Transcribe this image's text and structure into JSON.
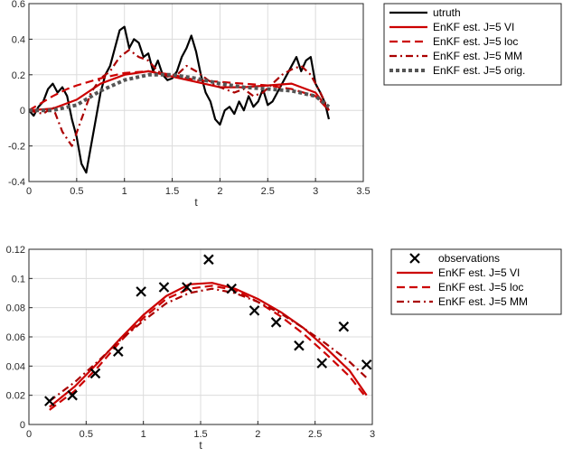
{
  "chart_data": [
    {
      "type": "line",
      "xlabel": "t",
      "ylabel": "",
      "xlim": [
        0,
        3.5
      ],
      "ylim": [
        -0.4,
        0.6
      ],
      "xticks": [
        "0",
        "0.5",
        "1",
        "1.5",
        "2",
        "2.5",
        "3",
        "3.5"
      ],
      "yticks": [
        "-0.4",
        "-0.2",
        "0",
        "0.2",
        "0.4",
        "0.6"
      ],
      "grid": true,
      "legend_position": "outside-right",
      "series": [
        {
          "name": "utruth",
          "color": "#000000",
          "style": "solid",
          "x": [
            0.0,
            0.05,
            0.1,
            0.15,
            0.2,
            0.25,
            0.3,
            0.35,
            0.4,
            0.45,
            0.5,
            0.55,
            0.6,
            0.65,
            0.7,
            0.75,
            0.8,
            0.85,
            0.9,
            0.95,
            1.0,
            1.05,
            1.1,
            1.15,
            1.2,
            1.25,
            1.3,
            1.35,
            1.4,
            1.45,
            1.5,
            1.55,
            1.6,
            1.65,
            1.7,
            1.75,
            1.8,
            1.85,
            1.9,
            1.95,
            2.0,
            2.05,
            2.1,
            2.15,
            2.2,
            2.25,
            2.3,
            2.35,
            2.4,
            2.45,
            2.5,
            2.55,
            2.6,
            2.65,
            2.7,
            2.75,
            2.8,
            2.85,
            2.9,
            2.95,
            3.0,
            3.05,
            3.1,
            3.14
          ],
          "values": [
            0.0,
            -0.03,
            0.02,
            0.05,
            0.12,
            0.15,
            0.1,
            0.13,
            0.08,
            -0.05,
            -0.15,
            -0.3,
            -0.35,
            -0.2,
            -0.05,
            0.1,
            0.2,
            0.25,
            0.35,
            0.45,
            0.47,
            0.35,
            0.4,
            0.38,
            0.3,
            0.32,
            0.22,
            0.28,
            0.2,
            0.17,
            0.18,
            0.22,
            0.3,
            0.35,
            0.42,
            0.33,
            0.2,
            0.1,
            0.05,
            -0.05,
            -0.08,
            0.0,
            0.02,
            -0.02,
            0.05,
            0.0,
            0.08,
            0.02,
            0.05,
            0.12,
            0.03,
            0.05,
            0.1,
            0.15,
            0.2,
            0.25,
            0.3,
            0.22,
            0.28,
            0.3,
            0.15,
            0.1,
            0.04,
            -0.05
          ]
        },
        {
          "name": "EnKF est. J=5 VI",
          "color": "#cc0000",
          "style": "solid",
          "x": [
            0.0,
            0.25,
            0.5,
            0.75,
            1.0,
            1.25,
            1.5,
            1.75,
            2.0,
            2.25,
            2.5,
            2.75,
            3.0,
            3.14
          ],
          "values": [
            0.0,
            0.01,
            0.06,
            0.15,
            0.2,
            0.22,
            0.19,
            0.16,
            0.13,
            0.13,
            0.14,
            0.15,
            0.1,
            0.0
          ]
        },
        {
          "name": "EnKF est. J=5 loc",
          "color": "#cc0000",
          "style": "dashed",
          "x": [
            0.0,
            0.25,
            0.4,
            0.5,
            0.75,
            1.0,
            1.25,
            1.5,
            1.75,
            2.0,
            2.25,
            2.5,
            2.75,
            3.0,
            3.14
          ],
          "values": [
            0.0,
            0.08,
            0.12,
            0.14,
            0.18,
            0.21,
            0.22,
            0.2,
            0.17,
            0.16,
            0.15,
            0.14,
            0.12,
            0.08,
            0.0
          ]
        },
        {
          "name": "EnKF est. J=5 MM",
          "color": "#aa0000",
          "style": "dashdot",
          "x": [
            0.0,
            0.15,
            0.25,
            0.35,
            0.45,
            0.55,
            0.65,
            0.75,
            0.85,
            0.95,
            1.05,
            1.15,
            1.25,
            1.35,
            1.45,
            1.55,
            1.65,
            1.75,
            1.85,
            1.95,
            2.05,
            2.15,
            2.25,
            2.35,
            2.45,
            2.55,
            2.65,
            2.75,
            2.85,
            2.95,
            3.05,
            3.14
          ],
          "values": [
            0.0,
            -0.02,
            0.02,
            -0.12,
            -0.2,
            -0.05,
            0.1,
            0.18,
            0.22,
            0.3,
            0.34,
            0.3,
            0.28,
            0.22,
            0.19,
            0.2,
            0.25,
            0.22,
            0.18,
            0.14,
            0.12,
            0.1,
            0.12,
            0.08,
            0.1,
            0.15,
            0.2,
            0.23,
            0.25,
            0.2,
            0.1,
            0.0
          ]
        },
        {
          "name": "EnKF est. J=5 orig.",
          "color": "#555555",
          "style": "dotted",
          "x": [
            0.0,
            0.25,
            0.5,
            0.75,
            1.0,
            1.25,
            1.5,
            1.75,
            2.0,
            2.25,
            2.5,
            2.75,
            3.0,
            3.14
          ],
          "values": [
            0.0,
            0.0,
            0.03,
            0.11,
            0.17,
            0.2,
            0.2,
            0.18,
            0.15,
            0.13,
            0.12,
            0.11,
            0.08,
            0.02
          ]
        }
      ]
    },
    {
      "type": "line",
      "xlabel": "t",
      "ylabel": "",
      "xlim": [
        0,
        3
      ],
      "ylim": [
        0,
        0.12
      ],
      "xticks": [
        "0",
        "0.5",
        "1",
        "1.5",
        "2",
        "2.5",
        "3"
      ],
      "yticks": [
        "0",
        "0.02",
        "0.04",
        "0.06",
        "0.08",
        "0.1",
        "0.12"
      ],
      "grid": true,
      "legend_position": "outside-right",
      "observations": {
        "name": "observations",
        "color": "#000000",
        "marker": "x",
        "x": [
          0.18,
          0.38,
          0.58,
          0.78,
          0.98,
          1.18,
          1.38,
          1.57,
          1.77,
          1.97,
          2.16,
          2.36,
          2.56,
          2.75,
          2.95
        ],
        "values": [
          0.016,
          0.02,
          0.035,
          0.05,
          0.091,
          0.094,
          0.094,
          0.113,
          0.093,
          0.078,
          0.07,
          0.054,
          0.042,
          0.067,
          0.041
        ]
      },
      "series": [
        {
          "name": "EnKF est. J=5 VI",
          "color": "#cc0000",
          "style": "solid",
          "x": [
            0.18,
            0.4,
            0.6,
            0.8,
            1.0,
            1.2,
            1.4,
            1.6,
            1.8,
            2.0,
            2.2,
            2.4,
            2.6,
            2.8,
            2.95
          ],
          "values": [
            0.012,
            0.026,
            0.042,
            0.059,
            0.075,
            0.088,
            0.096,
            0.097,
            0.093,
            0.086,
            0.077,
            0.066,
            0.052,
            0.037,
            0.02
          ]
        },
        {
          "name": "EnKF est. J=5 loc",
          "color": "#cc0000",
          "style": "dashed",
          "x": [
            0.18,
            0.4,
            0.6,
            0.8,
            1.0,
            1.2,
            1.4,
            1.6,
            1.8,
            2.0,
            2.2,
            2.4,
            2.6,
            2.8,
            2.95
          ],
          "values": [
            0.01,
            0.023,
            0.039,
            0.057,
            0.073,
            0.086,
            0.093,
            0.095,
            0.092,
            0.084,
            0.074,
            0.062,
            0.048,
            0.033,
            0.018
          ]
        },
        {
          "name": "EnKF est. J=5 MM",
          "color": "#aa0000",
          "style": "dashdot",
          "x": [
            0.18,
            0.4,
            0.6,
            0.8,
            1.0,
            1.2,
            1.4,
            1.6,
            1.8,
            2.0,
            2.2,
            2.4,
            2.6,
            2.8,
            2.95
          ],
          "values": [
            0.016,
            0.029,
            0.043,
            0.058,
            0.071,
            0.083,
            0.09,
            0.093,
            0.09,
            0.084,
            0.076,
            0.066,
            0.055,
            0.043,
            0.032
          ]
        }
      ]
    }
  ]
}
